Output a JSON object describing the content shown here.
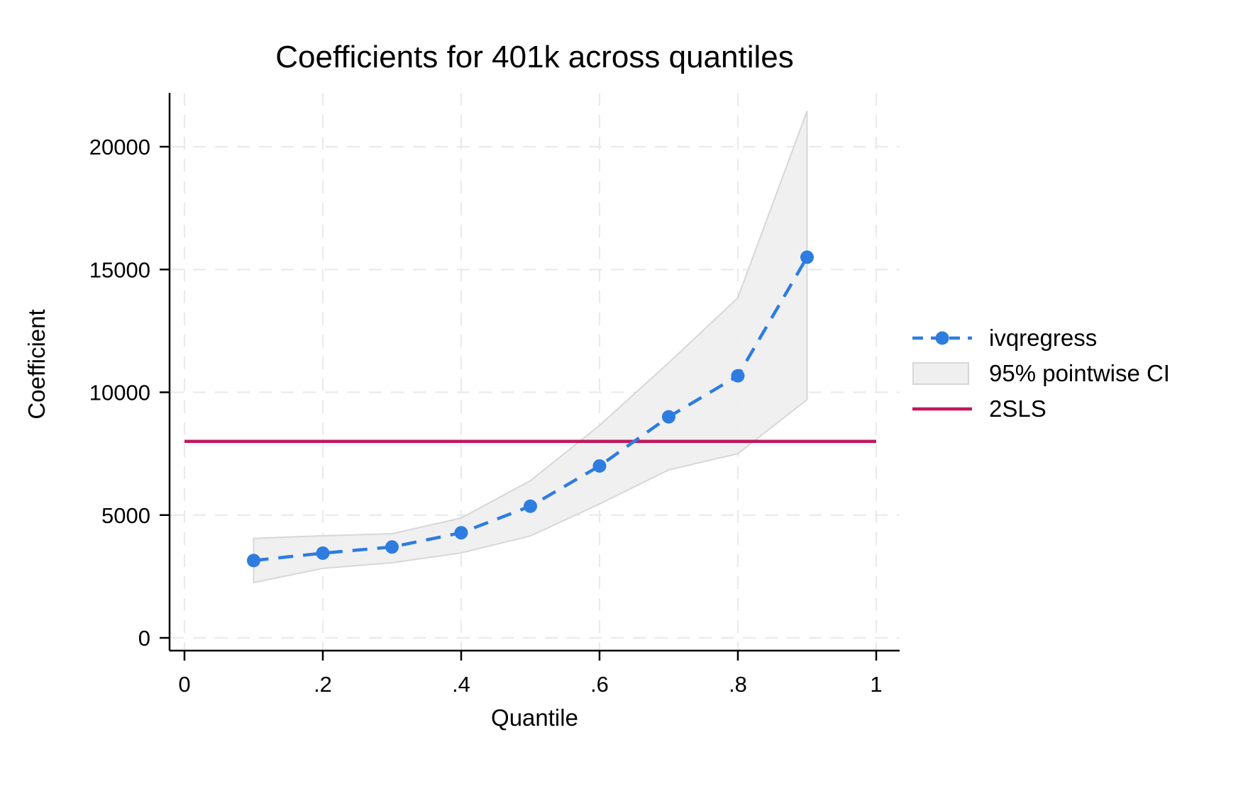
{
  "chart_data": {
    "type": "line",
    "title": "Coefficients for 401k across quantiles",
    "xlabel": "Quantile",
    "ylabel": "Coefficient",
    "x": [
      0.1,
      0.2,
      0.3,
      0.4,
      0.5,
      0.6,
      0.7,
      0.8,
      0.9
    ],
    "series": [
      {
        "name": "ivqregress",
        "style": "dashed_line_with_markers",
        "color": "#2e7ce0",
        "values": [
          3150,
          3450,
          3700,
          4280,
          5360,
          7000,
          9000,
          10670,
          15500
        ]
      },
      {
        "name": "95% pointwise CI",
        "style": "band",
        "fill": "#efefef",
        "stroke": "#d7d7d7",
        "lower": [
          2250,
          2830,
          3060,
          3460,
          4150,
          5450,
          6840,
          7500,
          9700
        ],
        "upper": [
          4050,
          4160,
          4240,
          4880,
          6400,
          8650,
          11200,
          13850,
          21450
        ]
      },
      {
        "name": "2SLS",
        "style": "hline",
        "color": "#c1175c",
        "value": 8000
      }
    ],
    "x_ticks": {
      "values": [
        0,
        0.2,
        0.4,
        0.6,
        0.8,
        1
      ],
      "labels": [
        "0",
        ".2",
        ".4",
        ".6",
        ".8",
        "1"
      ]
    },
    "y_ticks": {
      "values": [
        0,
        5000,
        10000,
        15000,
        20000
      ],
      "labels": [
        "0",
        "5000",
        "10000",
        "15000",
        "20000"
      ]
    },
    "xlim": [
      0,
      1
    ],
    "ylim": [
      0,
      22200
    ],
    "grid": true,
    "gridline_color": "#e8eaec",
    "axis_color": "#000000",
    "legend_position": "right-middle"
  },
  "legend": [
    {
      "label": "ivqregress"
    },
    {
      "label": "95% pointwise CI"
    },
    {
      "label": "2SLS"
    }
  ]
}
